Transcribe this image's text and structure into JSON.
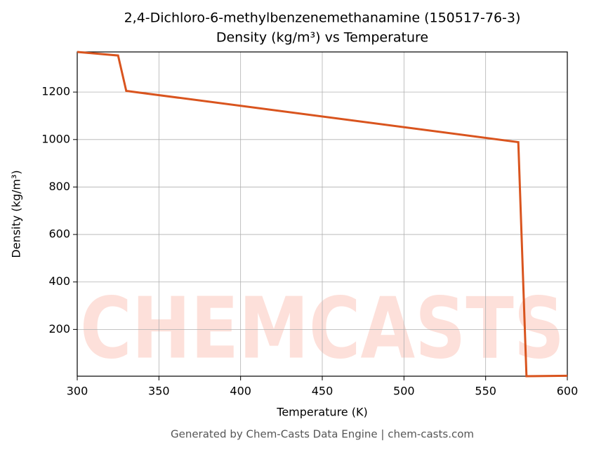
{
  "chart_data": {
    "type": "line",
    "title": "2,4-Dichloro-6-methylbenzenemethanamine (150517-76-3)",
    "subtitle": "Density (kg/m³) vs Temperature",
    "x_label": "Temperature (K)",
    "y_label": "Density (kg/m³)",
    "watermark": "CHEMCASTS",
    "footer": "Generated by Chem-Casts Data Engine | chem-casts.com",
    "x": [
      300,
      325,
      330,
      570,
      575,
      600
    ],
    "series": [
      {
        "name": "Density",
        "color": "#d9541e",
        "values": [
          1369,
          1354,
          1205,
          989,
          3,
          5
        ]
      }
    ],
    "xlim": [
      300,
      600
    ],
    "xticks": [
      300,
      350,
      400,
      450,
      500,
      550,
      600
    ],
    "ylim": [
      3,
      1369
    ],
    "yticks": [
      200,
      400,
      600,
      800,
      1000,
      1200
    ],
    "grid": true
  }
}
